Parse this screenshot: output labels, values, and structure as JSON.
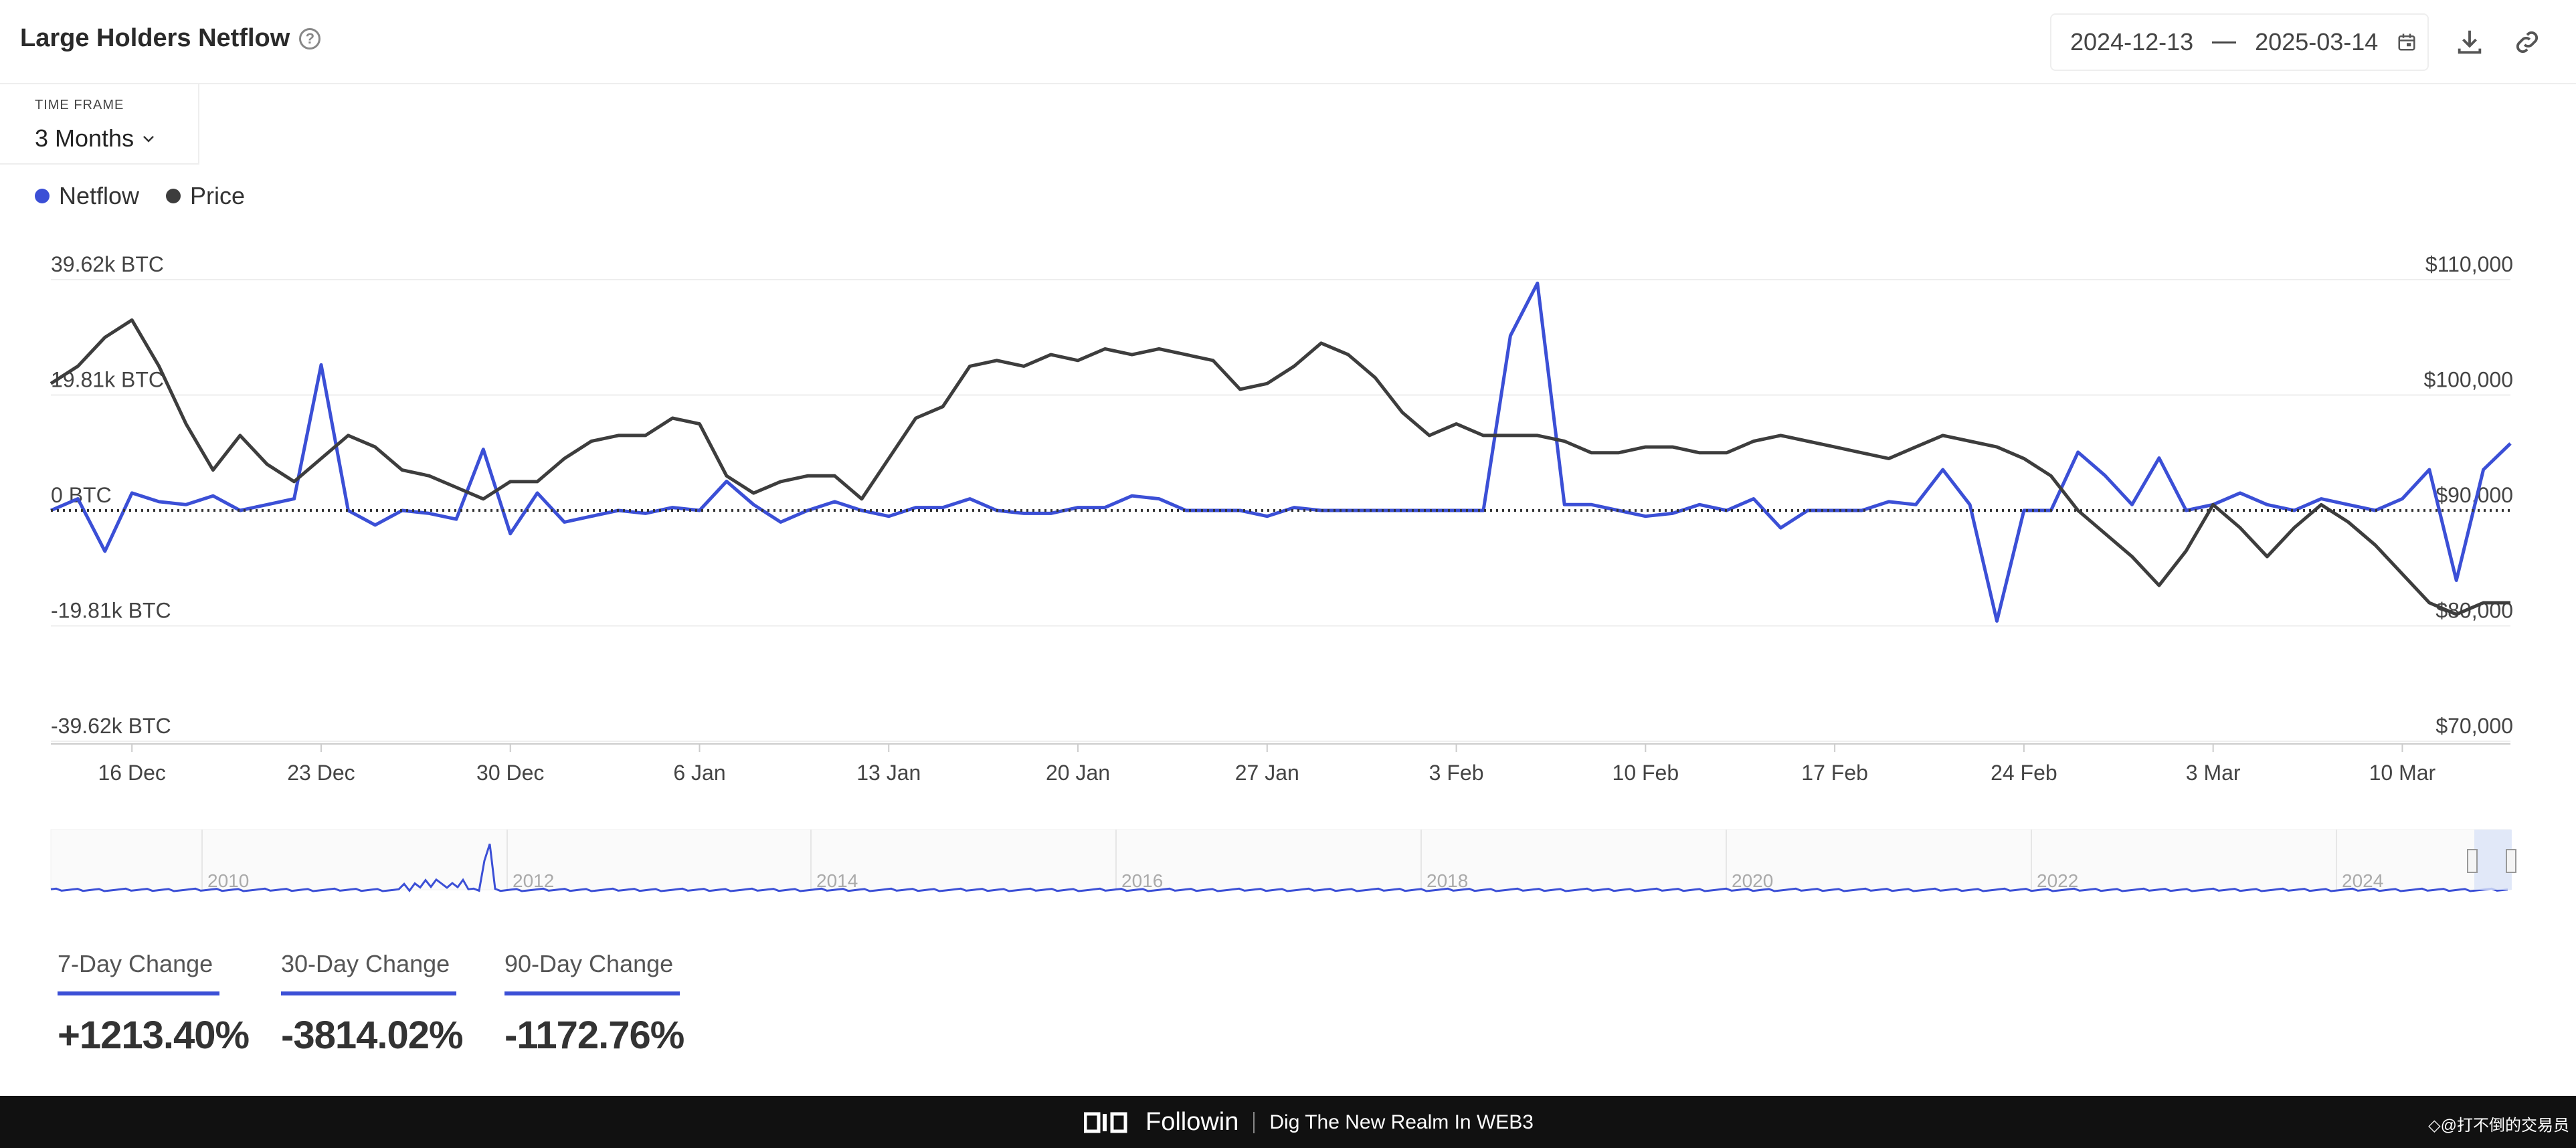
{
  "header": {
    "title": "Large Holders Netflow",
    "date_start": "2024-12-13",
    "date_end": "2025-03-14"
  },
  "timeframe": {
    "label": "TIME FRAME",
    "value": "3 Months"
  },
  "legend": [
    {
      "name": "Netflow",
      "color": "#3b4fd6"
    },
    {
      "name": "Price",
      "color": "#3d3d3d"
    }
  ],
  "changes": [
    {
      "label": "7-Day Change",
      "value": "+1213.40%"
    },
    {
      "label": "30-Day Change",
      "value": "-3814.02%"
    },
    {
      "label": "90-Day Change",
      "value": "-1172.76%"
    }
  ],
  "footer": {
    "brand": "Followin",
    "tagline": "Dig The New Realm In WEB3",
    "watermark": "◇@打不倒的交易员"
  },
  "chart_data": {
    "type": "line",
    "x_start": "2024-12-13",
    "x_end": "2025-03-14",
    "x_ticks": [
      "16 Dec",
      "23 Dec",
      "30 Dec",
      "6 Jan",
      "13 Jan",
      "20 Jan",
      "27 Jan",
      "3 Feb",
      "10 Feb",
      "17 Feb",
      "24 Feb",
      "3 Mar",
      "10 Mar"
    ],
    "y_left": {
      "min": -39620,
      "max": 39620,
      "ticks": [
        39620,
        19810,
        0,
        -19810,
        -39620
      ],
      "tick_labels": [
        "39.62k BTC",
        "19.81k BTC",
        "0 BTC",
        "-19.81k BTC",
        "-39.62k BTC"
      ]
    },
    "y_right": {
      "min": 70000,
      "max": 110000,
      "ticks": [
        110000,
        100000,
        90000,
        80000,
        70000
      ],
      "tick_labels": [
        "$110,000",
        "$100,000",
        "$90,000",
        "$80,000",
        "$70,000"
      ]
    },
    "zero_line": "dotted",
    "series": [
      {
        "name": "Netflow",
        "axis": "left",
        "color": "#3b4fd6",
        "values": [
          0,
          2000,
          -7000,
          3000,
          1500,
          1000,
          2500,
          0,
          1000,
          2000,
          25000,
          0,
          -2500,
          0,
          -500,
          -1500,
          10500,
          -4000,
          3000,
          -2000,
          -1000,
          0,
          -500,
          500,
          0,
          5000,
          1000,
          -2000,
          0,
          1500,
          0,
          -1000,
          500,
          500,
          2000,
          0,
          -500,
          -500,
          500,
          500,
          2500,
          2000,
          0,
          0,
          0,
          -1000,
          500,
          0,
          0,
          0,
          0,
          0,
          0,
          0,
          30000,
          39000,
          1000,
          1000,
          0,
          -1000,
          -500,
          1000,
          0,
          2000,
          -3000,
          0,
          0,
          0,
          1500,
          1000,
          7000,
          1000,
          -19000,
          0,
          0,
          10000,
          6000,
          1000,
          9000,
          0,
          1000,
          3000,
          1000,
          0,
          2000,
          1000,
          0,
          2000,
          7000,
          -12000,
          7000,
          11500
        ]
      },
      {
        "name": "Price",
        "axis": "right",
        "color": "#3d3d3d",
        "values": [
          101000,
          102500,
          105000,
          106500,
          102500,
          97500,
          93500,
          96500,
          94000,
          92500,
          94500,
          96500,
          95500,
          93500,
          93000,
          92000,
          91000,
          92500,
          92500,
          94500,
          96000,
          96500,
          96500,
          98000,
          97500,
          93000,
          91500,
          92500,
          93000,
          93000,
          91000,
          94500,
          98000,
          99000,
          102500,
          103000,
          102500,
          103500,
          103000,
          104000,
          103500,
          104000,
          103500,
          103000,
          100500,
          101000,
          102500,
          104500,
          103500,
          101500,
          98500,
          96500,
          97500,
          96500,
          96500,
          96500,
          96000,
          95000,
          95000,
          95500,
          95500,
          95000,
          95000,
          96000,
          96500,
          96000,
          95500,
          95000,
          94500,
          95500,
          96500,
          96000,
          95500,
          94500,
          93000,
          90000,
          88000,
          86000,
          83500,
          86500,
          90500,
          88500,
          86000,
          88500,
          90500,
          89000,
          87000,
          84500,
          82000,
          81000,
          82000,
          82000
        ]
      }
    ],
    "navigator": {
      "x_ticks": [
        "2010",
        "2012",
        "2014",
        "2016",
        "2018",
        "2020",
        "2022",
        "2024"
      ]
    }
  }
}
